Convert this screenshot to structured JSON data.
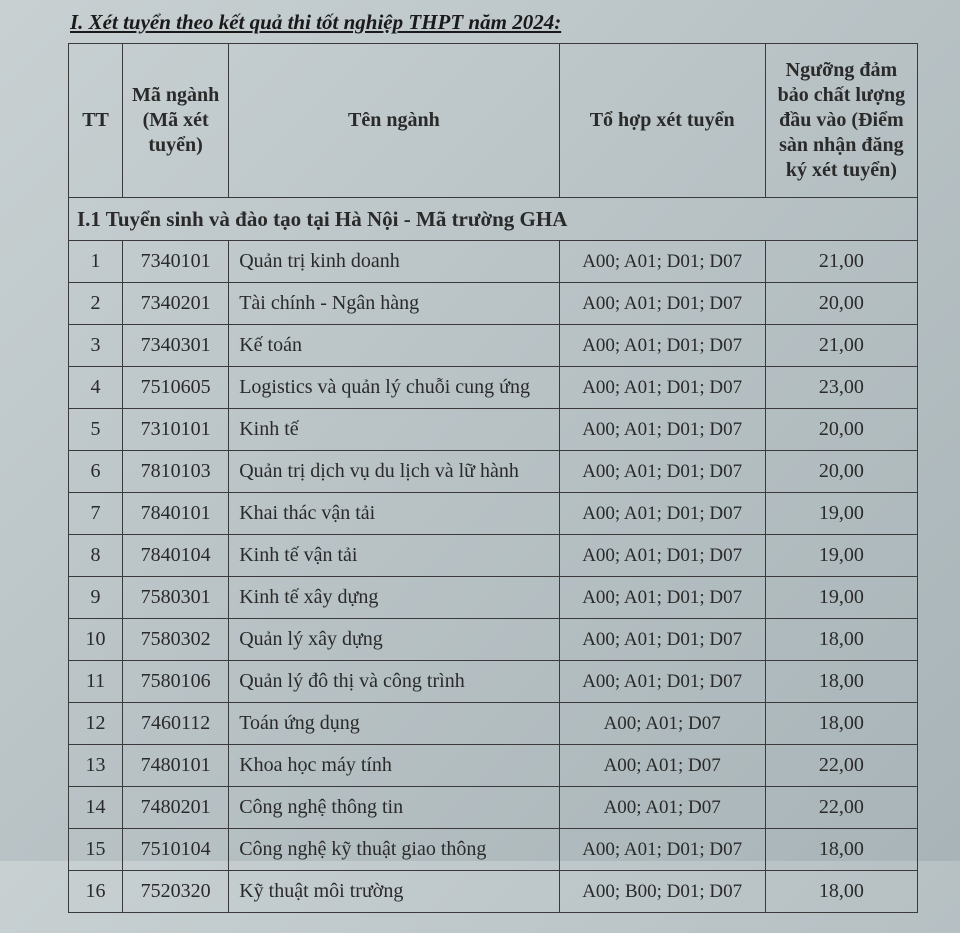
{
  "heading": "I. Xét tuyển theo kết quả thi tốt nghiệp THPT năm 2024:",
  "columns": {
    "tt": "TT",
    "ma": "Mã ngành (Mã xét tuyển)",
    "ten": "Tên ngành",
    "thop": "Tổ hợp xét tuyển",
    "nguong": "Ngưỡng đảm bảo chất lượng đầu vào (Điểm sàn nhận đăng ký xét tuyển)"
  },
  "section": "I.1 Tuyển sinh và đào tạo tại Hà Nội - Mã trường GHA",
  "rows": [
    {
      "tt": "1",
      "ma": "7340101",
      "ten": "Quản trị kinh doanh",
      "thop": "A00; A01; D01; D07",
      "ng": "21,00"
    },
    {
      "tt": "2",
      "ma": "7340201",
      "ten": "Tài chính - Ngân hàng",
      "thop": "A00; A01; D01; D07",
      "ng": "20,00"
    },
    {
      "tt": "3",
      "ma": "7340301",
      "ten": "Kế toán",
      "thop": "A00; A01; D01; D07",
      "ng": "21,00"
    },
    {
      "tt": "4",
      "ma": "7510605",
      "ten": "Logistics và quản lý chuỗi cung ứng",
      "thop": "A00; A01; D01; D07",
      "ng": "23,00"
    },
    {
      "tt": "5",
      "ma": "7310101",
      "ten": "Kinh tế",
      "thop": "A00; A01; D01; D07",
      "ng": "20,00"
    },
    {
      "tt": "6",
      "ma": "7810103",
      "ten": "Quản trị dịch vụ du lịch và lữ hành",
      "thop": "A00; A01; D01; D07",
      "ng": "20,00"
    },
    {
      "tt": "7",
      "ma": "7840101",
      "ten": "Khai thác vận tải",
      "thop": "A00; A01; D01; D07",
      "ng": "19,00"
    },
    {
      "tt": "8",
      "ma": "7840104",
      "ten": "Kinh tế vận tải",
      "thop": "A00; A01; D01; D07",
      "ng": "19,00"
    },
    {
      "tt": "9",
      "ma": "7580301",
      "ten": "Kinh tế xây dựng",
      "thop": "A00; A01; D01; D07",
      "ng": "19,00"
    },
    {
      "tt": "10",
      "ma": "7580302",
      "ten": "Quản lý xây dựng",
      "thop": "A00; A01; D01; D07",
      "ng": "18,00"
    },
    {
      "tt": "11",
      "ma": "7580106",
      "ten": "Quản lý đô thị và công trình",
      "thop": "A00; A01; D01; D07",
      "ng": "18,00"
    },
    {
      "tt": "12",
      "ma": "7460112",
      "ten": "Toán ứng dụng",
      "thop": "A00; A01; D07",
      "ng": "18,00"
    },
    {
      "tt": "13",
      "ma": "7480101",
      "ten": "Khoa học máy tính",
      "thop": "A00; A01; D07",
      "ng": "22,00"
    },
    {
      "tt": "14",
      "ma": "7480201",
      "ten": "Công nghệ thông tin",
      "thop": "A00; A01; D07",
      "ng": "22,00"
    },
    {
      "tt": "15",
      "ma": "7510104",
      "ten": "Công nghệ kỹ thuật giao thông",
      "thop": "A00; A01; D01; D07",
      "ng": "18,00"
    },
    {
      "tt": "16",
      "ma": "7520320",
      "ten": "Kỹ thuật môi trường",
      "thop": "A00; B00; D01; D07",
      "ng": "18,00"
    }
  ]
}
